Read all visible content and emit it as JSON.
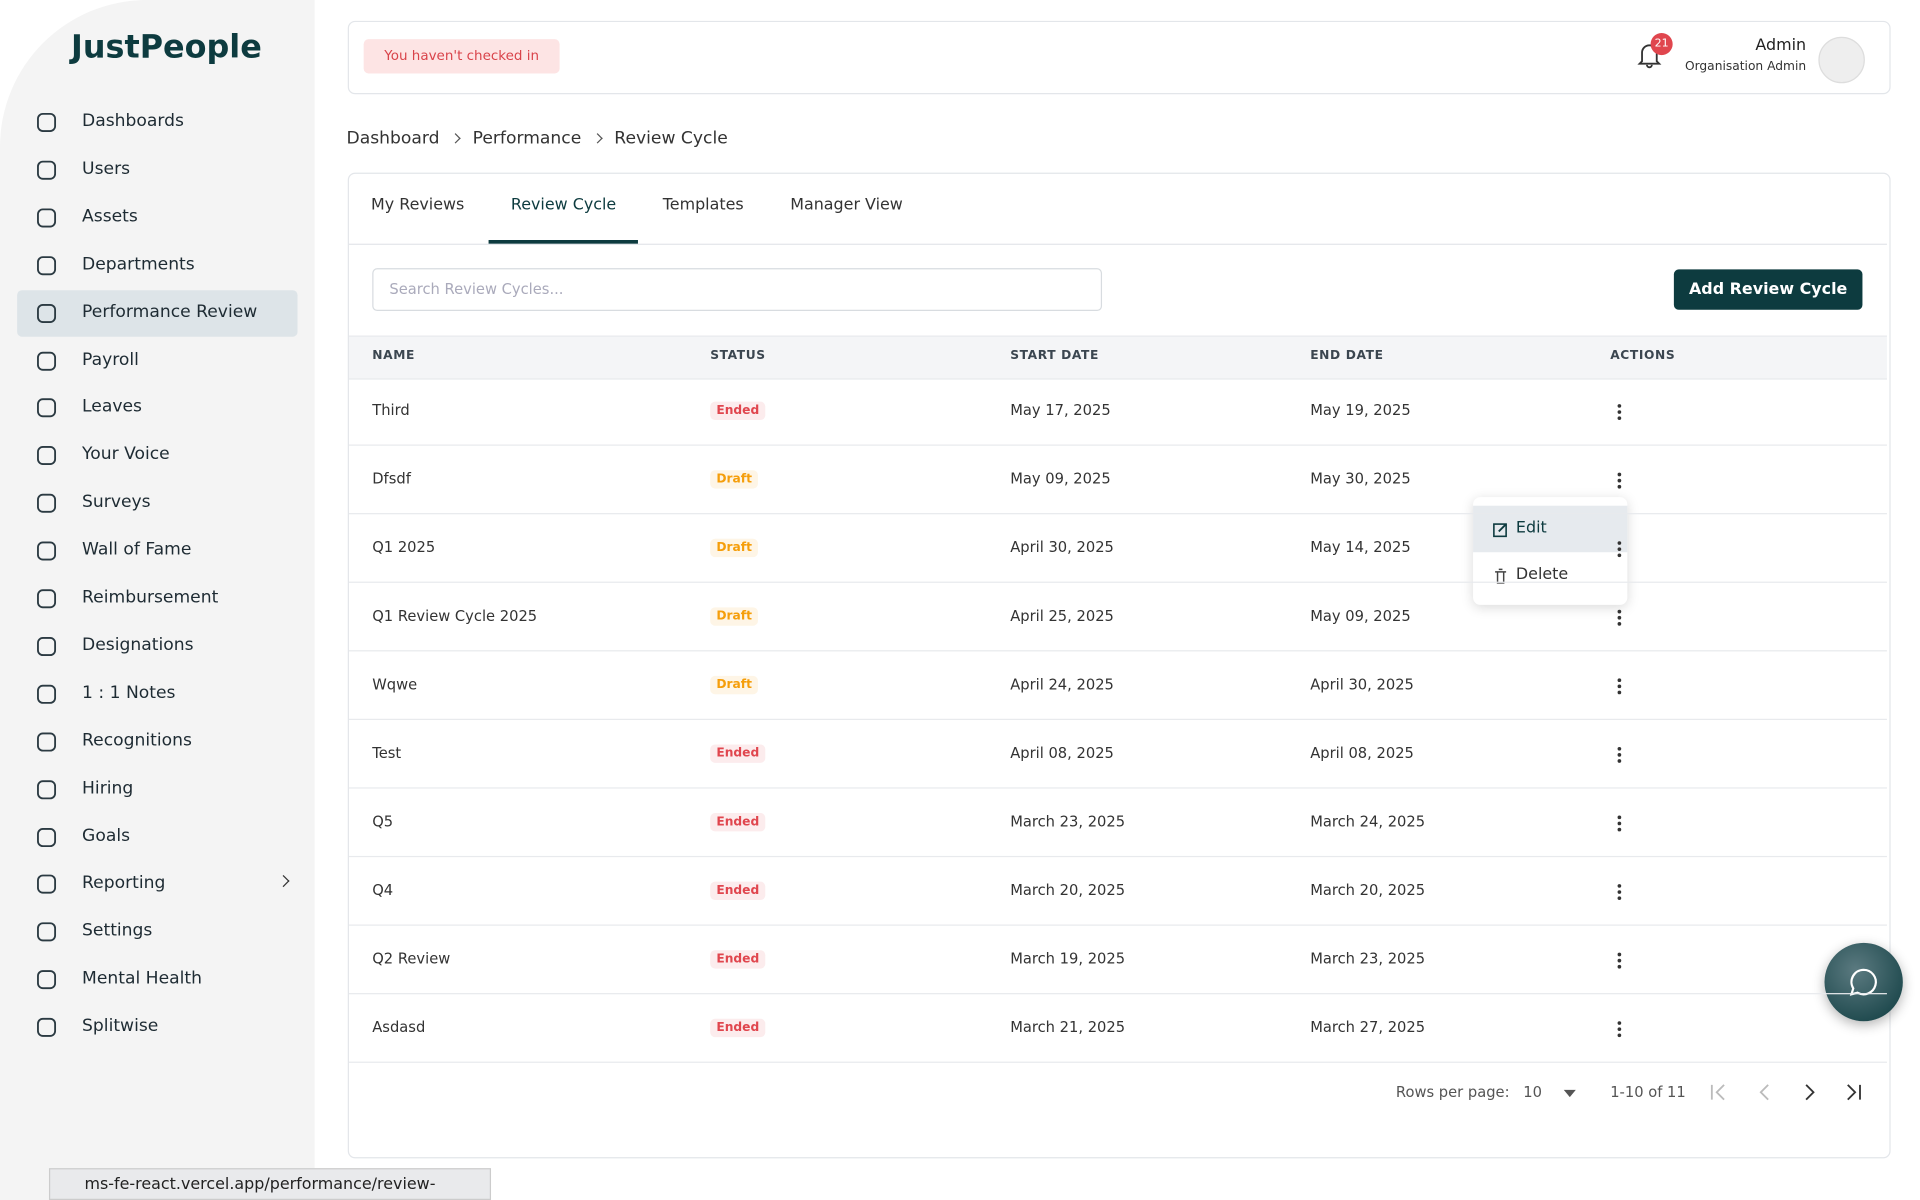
{
  "brand": "JustPeople",
  "sidebar": {
    "items": [
      "Dashboards",
      "Users",
      "Assets",
      "Departments",
      "Performance Review",
      "Payroll",
      "Leaves",
      "Your Voice",
      "Surveys",
      "Wall of Fame",
      "Reimbursement",
      "Designations",
      "1 : 1 Notes",
      "Recognitions",
      "Hiring",
      "Goals",
      "Reporting",
      "Settings",
      "Mental Health",
      "Splitwise"
    ],
    "active": 4,
    "expandable": 16
  },
  "topbar": {
    "checkin_notice": "You haven't checked in",
    "notifications": 21,
    "user_name": "Admin",
    "user_role": "Organisation Admin"
  },
  "breadcrumb": [
    "Dashboard",
    "Performance",
    "Review Cycle"
  ],
  "tabs": {
    "items": [
      "My Reviews",
      "Review Cycle",
      "Templates",
      "Manager View"
    ],
    "active": 1
  },
  "search_placeholder": "Search Review Cycles...",
  "add_button": "Add Review Cycle",
  "table": {
    "columns": [
      "NAME",
      "STATUS",
      "START DATE",
      "END DATE",
      "ACTIONS"
    ],
    "status_colors": {
      "Ended": "#e0464e",
      "Draft": "#f59e0b"
    },
    "rows": [
      [
        "Third",
        "Ended",
        "May 17, 2025",
        "May 19, 2025"
      ],
      [
        "Dfsdf",
        "Draft",
        "May 09, 2025",
        "May 30, 2025"
      ],
      [
        "Q1 2025",
        "Draft",
        "April 30, 2025",
        "May 14, 2025"
      ],
      [
        "Q1 Review Cycle 2025",
        "Draft",
        "April 25, 2025",
        "May 09, 2025"
      ],
      [
        "Wqwe",
        "Draft",
        "April 24, 2025",
        "April 30, 2025"
      ],
      [
        "Test",
        "Ended",
        "April 08, 2025",
        "April 08, 2025"
      ],
      [
        "Q5",
        "Ended",
        "March 23, 2025",
        "March 24, 2025"
      ],
      [
        "Q4",
        "Ended",
        "March 20, 2025",
        "March 20, 2025"
      ],
      [
        "Q2 Review",
        "Ended",
        "March 19, 2025",
        "March 23, 2025"
      ],
      [
        "Asdasd",
        "Ended",
        "March 21, 2025",
        "March 27, 2025"
      ]
    ]
  },
  "menu": [
    "Edit",
    "Delete"
  ],
  "pagination": {
    "rows_per_page_label": "Rows per page:",
    "rows_per_page": 10,
    "range": "1-10 of 11"
  },
  "status_url": "ms-fe-react.vercel.app/performance/review-cycle#"
}
